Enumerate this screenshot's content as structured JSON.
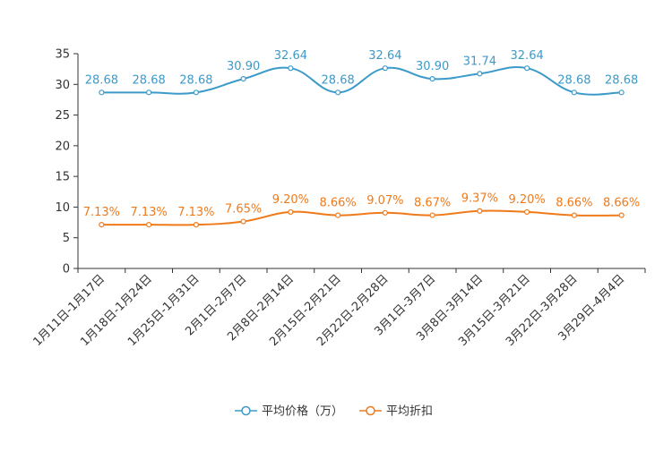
{
  "chart_data": {
    "type": "line",
    "title": "",
    "xlabel": "",
    "ylabel": "",
    "ylim": [
      0,
      35
    ],
    "yticks": [
      0,
      5,
      10,
      15,
      20,
      25,
      30,
      35
    ],
    "grid": false,
    "legend_position": "bottom",
    "categories": [
      "1月11日-1月17日",
      "1月18日-1月24日",
      "1月25日-1月31日",
      "2月1日-2月7日",
      "2月8日-2月14日",
      "2月15日-2月21日",
      "2月22日-2月28日",
      "3月1日-3月7日",
      "3月8日-3月14日",
      "3月15日-3月21日",
      "3月22日-3月28日",
      "3月29日-4月4日"
    ],
    "series": [
      {
        "name": "平均价格（万）",
        "color": "#3c9ac9",
        "values": [
          28.68,
          28.68,
          28.68,
          30.9,
          32.64,
          28.68,
          32.64,
          30.9,
          31.74,
          32.64,
          28.68,
          28.68
        ],
        "labels": [
          "28.68",
          "28.68",
          "28.68",
          "30.90",
          "32.64",
          "28.68",
          "32.64",
          "30.90",
          "31.74",
          "32.64",
          "28.68",
          "28.68"
        ]
      },
      {
        "name": "平均折扣",
        "color": "#f07a1a",
        "values": [
          7.13,
          7.13,
          7.13,
          7.65,
          9.2,
          8.66,
          9.07,
          8.67,
          9.37,
          9.2,
          8.66,
          8.66
        ],
        "labels": [
          "7.13%",
          "7.13%",
          "7.13%",
          "7.65%",
          "9.20%",
          "8.66%",
          "9.07%",
          "8.67%",
          "9.37%",
          "9.20%",
          "8.66%",
          "8.66%"
        ]
      }
    ]
  }
}
